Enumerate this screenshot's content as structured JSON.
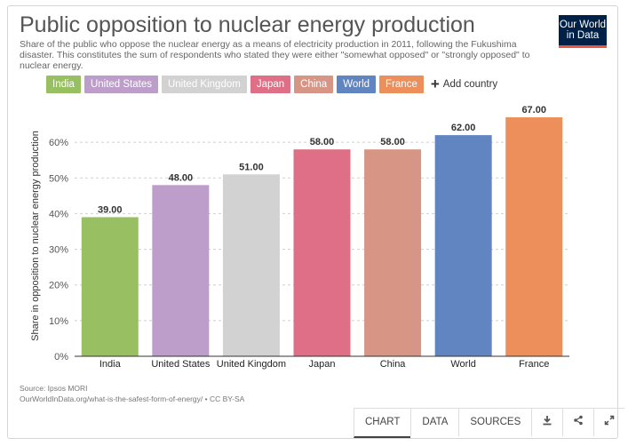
{
  "header": {
    "title": "Public opposition to nuclear energy production",
    "subtitle": "Share of the public who oppose the nuclear energy as a means of electricity production in 2011, following the Fukushima disaster. This constitutes the sum of respondents who stated they were either \"somewhat opposed\" or \"strongly opposed\" to nuclear energy.",
    "logo_line1": "Our World",
    "logo_line2": "in Data"
  },
  "legend": {
    "items": [
      {
        "label": "India",
        "color": "#98c063"
      },
      {
        "label": "United States",
        "color": "#bd9dc9"
      },
      {
        "label": "United Kingdom",
        "color": "#d2d2d2"
      },
      {
        "label": "Japan",
        "color": "#de6f86"
      },
      {
        "label": "China",
        "color": "#d69585"
      },
      {
        "label": "World",
        "color": "#6085c0"
      },
      {
        "label": "France",
        "color": "#ec8f5b"
      }
    ],
    "add_label": "Add country"
  },
  "chart_data": {
    "type": "bar",
    "categories": [
      "India",
      "United States",
      "United Kingdom",
      "Japan",
      "China",
      "World",
      "France"
    ],
    "values": [
      39.0,
      48.0,
      51.0,
      58.0,
      58.0,
      62.0,
      67.0
    ],
    "value_labels": [
      "39.00",
      "48.00",
      "51.00",
      "58.00",
      "58.00",
      "62.00",
      "67.00"
    ],
    "colors": [
      "#98c063",
      "#bd9dc9",
      "#d2d2d2",
      "#de6f86",
      "#d69585",
      "#6085c0",
      "#ec8f5b"
    ],
    "ylabel": "Share in opposition to nuclear energy production",
    "xlabel": "",
    "ylim": [
      0,
      70
    ],
    "yticks": [
      0,
      10,
      20,
      30,
      40,
      50,
      60
    ],
    "ytick_labels": [
      "0%",
      "10%",
      "20%",
      "30%",
      "40%",
      "50%",
      "60%"
    ],
    "grid": true
  },
  "footer": {
    "source": "Source: Ipsos MORI",
    "url": "OurWorldInData.org/what-is-the-safest-form-of-energy/ • CC BY-SA"
  },
  "toolbar": {
    "tabs": [
      "CHART",
      "DATA",
      "SOURCES"
    ],
    "active_tab": "CHART",
    "download_icon": "download-icon",
    "share_icon": "share-icon",
    "expand_icon": "expand-icon"
  }
}
